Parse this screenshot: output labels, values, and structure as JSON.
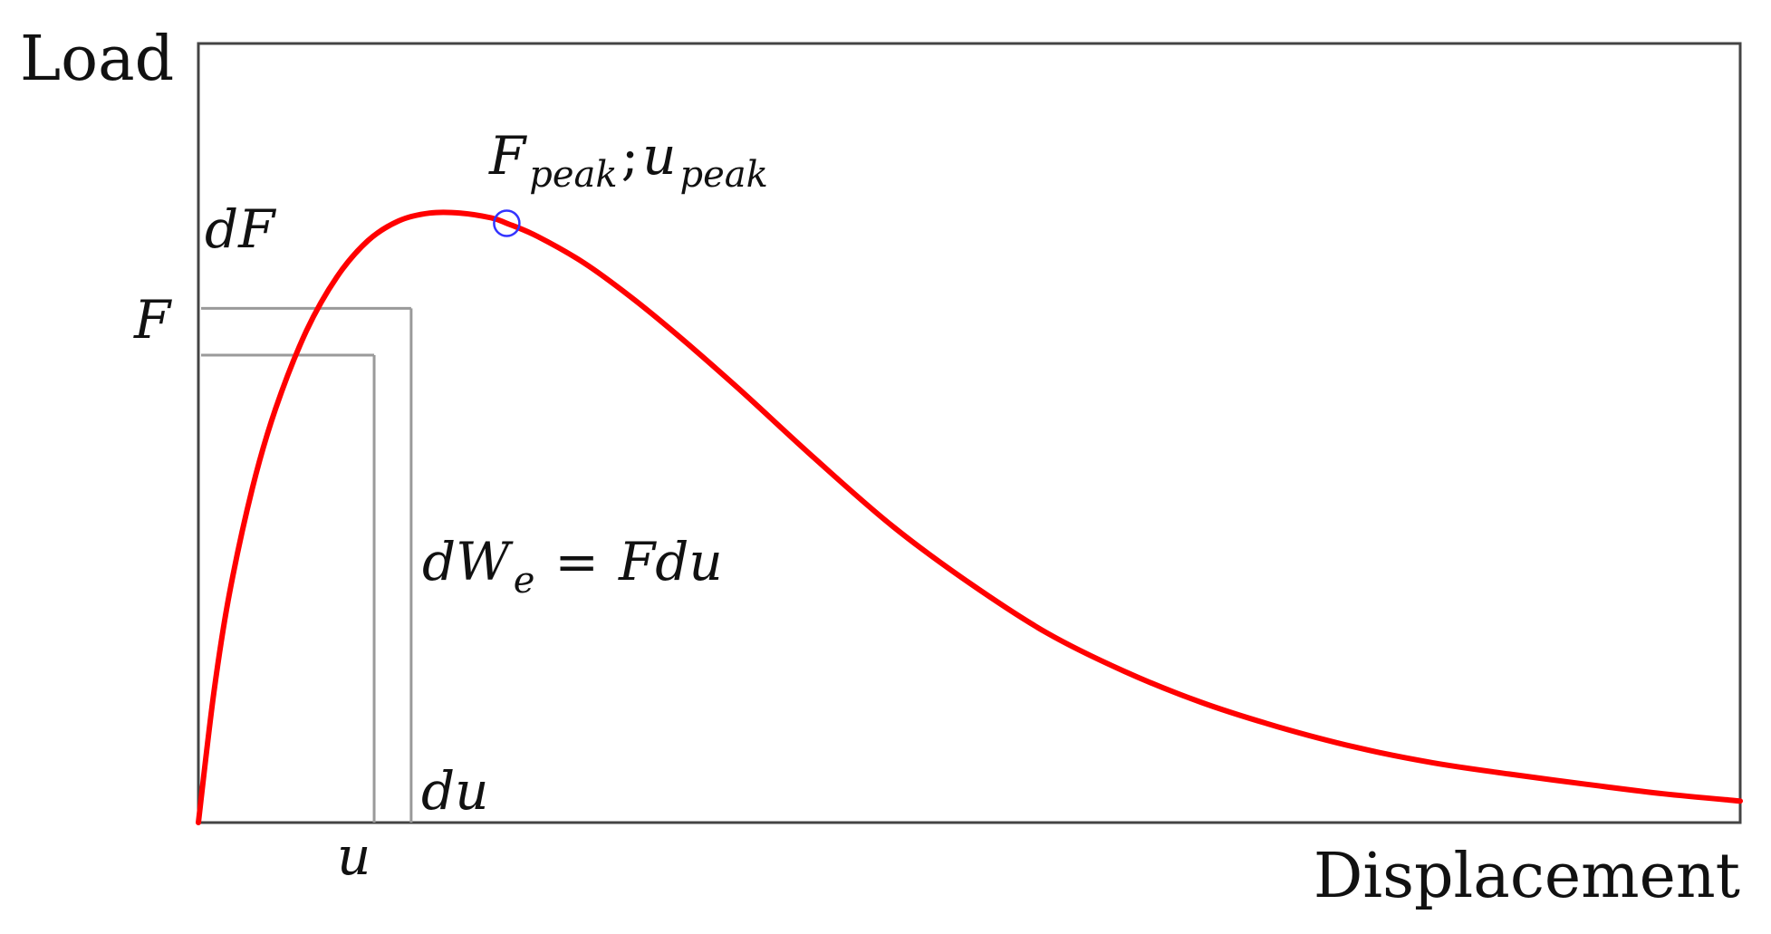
{
  "chart_data": {
    "type": "line",
    "xlabel": "Displacement",
    "ylabel": "Load",
    "xlim": [
      0,
      10
    ],
    "ylim": [
      0,
      1.3
    ],
    "grid": false,
    "series": [
      {
        "color": "#ff0000",
        "x": [
          0,
          0.1,
          0.2,
          0.35,
          0.5,
          0.7,
          0.9,
          1.1,
          1.3,
          1.5,
          1.7,
          1.9,
          2.0,
          2.2,
          2.5,
          2.8,
          3.1,
          3.5,
          4.0,
          4.5,
          5.0,
          5.5,
          6.0,
          6.5,
          7.0,
          7.5,
          8.0,
          8.5,
          9.0,
          9.5,
          10.0
        ],
        "y": [
          0,
          0.216,
          0.38,
          0.558,
          0.69,
          0.82,
          0.911,
          0.971,
          1.004,
          1.017,
          1.017,
          1.009,
          1.0,
          0.978,
          0.934,
          0.878,
          0.815,
          0.725,
          0.607,
          0.495,
          0.4,
          0.317,
          0.253,
          0.201,
          0.16,
          0.126,
          0.1,
          0.081,
          0.064,
          0.048,
          0.036
        ]
      }
    ],
    "peak_point": {
      "x": 2.0,
      "y": 1.0,
      "marker_color": "#3333ff"
    },
    "construction": {
      "u": 1.14,
      "u_plus_du": 1.38,
      "F": 0.78,
      "F_plus_dF": 0.858
    },
    "annotations": {
      "F": "F",
      "dF": "dF",
      "u": "u",
      "du": "du",
      "peak_main": "F",
      "peak_sub1": "peak",
      "peak_sep": ";",
      "peak_u": "u",
      "peak_sub2": "peak",
      "eq_dW": "dW",
      "eq_sub": "e",
      "eq_equals": "=",
      "eq_rhs": "Fdu"
    }
  }
}
